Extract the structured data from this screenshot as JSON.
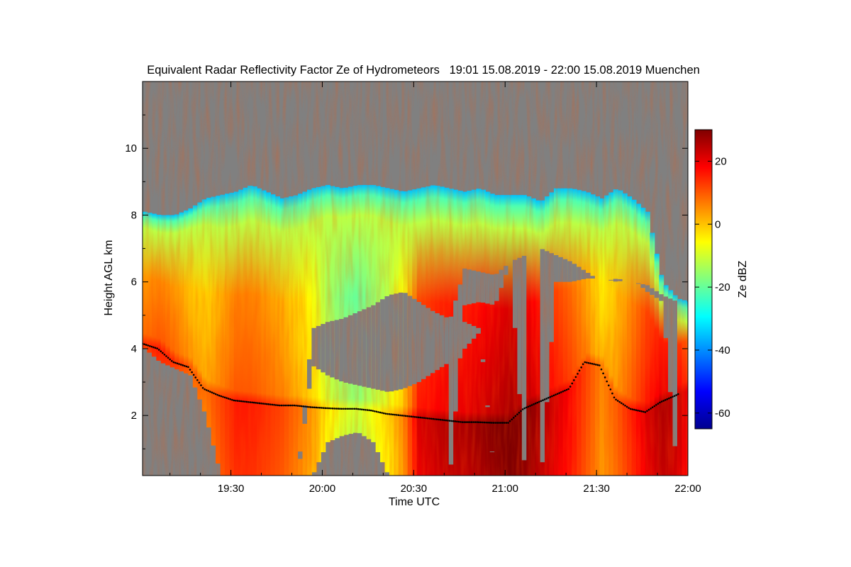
{
  "chart_data": {
    "type": "heatmap",
    "title": "Equivalent Radar Reflectivity Factor Ze of Hydrometeors   19:01 15.08.2019 - 22:00 15.08.2019 Muenchen",
    "xlabel": "Time UTC",
    "ylabel": "Height AGL km",
    "xlim": [
      "19:01",
      "22:00"
    ],
    "ylim": [
      0.2,
      12.0
    ],
    "x_ticks": [
      "19:30",
      "20:00",
      "20:30",
      "21:00",
      "21:30",
      "22:00"
    ],
    "x_tick_minutes": [
      29,
      59,
      89,
      119,
      149,
      179
    ],
    "y_ticks": [
      "2",
      "4",
      "6",
      "8",
      "10"
    ],
    "y_tick_values": [
      2,
      4,
      6,
      8,
      10
    ],
    "colorbar": {
      "label": "Ze dBZ",
      "range": [
        -65,
        30
      ],
      "ticks": [
        "-60",
        "-40",
        "-20",
        "0",
        "20"
      ],
      "tick_values": [
        -60,
        -40,
        -20,
        0,
        20
      ],
      "colors": [
        "#00008f",
        "#0000ff",
        "#0080ff",
        "#00ffff",
        "#80ff80",
        "#ffff00",
        "#ff8000",
        "#ff0000",
        "#800000"
      ]
    },
    "background_color": "#808080",
    "echo": {
      "minutes": [
        0,
        5,
        10,
        15,
        20,
        25,
        30,
        35,
        40,
        45,
        50,
        55,
        60,
        65,
        70,
        75,
        80,
        85,
        90,
        95,
        100,
        105,
        110,
        115,
        120,
        125,
        130,
        135,
        140,
        145,
        150,
        155,
        160,
        165,
        170,
        175,
        179
      ],
      "cloud_top_km": [
        8.1,
        8.0,
        8.0,
        8.2,
        8.5,
        8.6,
        8.7,
        8.9,
        8.7,
        8.5,
        8.6,
        8.8,
        8.9,
        8.8,
        8.9,
        8.9,
        8.8,
        8.7,
        8.8,
        8.9,
        8.8,
        8.7,
        8.8,
        8.6,
        8.6,
        8.6,
        8.4,
        8.8,
        8.8,
        8.7,
        8.5,
        8.8,
        8.5,
        8.1,
        6.0,
        5.5,
        5.4
      ],
      "gap_base_km": [
        6.5,
        6.5,
        6.3,
        6.2,
        6.3,
        6.0,
        5.8,
        5.3,
        4.8,
        4.6,
        3.5,
        3.4,
        3.2,
        3.4,
        3.6,
        3.8,
        4.0,
        4.2,
        4.3,
        4.3,
        4.8,
        6.4,
        6.3,
        6.2,
        6.6,
        6.8,
        7.0,
        6.8,
        6.6,
        6.3,
        6.0,
        6.1,
        6.0,
        5.9,
        5.6,
        5.4,
        5.3
      ],
      "gap_top_km": [
        0,
        0,
        0,
        0,
        0,
        0,
        0,
        0,
        0,
        0,
        0,
        0,
        0,
        0,
        0,
        0,
        0,
        0,
        0,
        0,
        0,
        5.3,
        5.4,
        5.3,
        6.6,
        0,
        0,
        6.0,
        6.0,
        6.1,
        6.1,
        6.0,
        6.1,
        5.7,
        5.4,
        0,
        0
      ],
      "gap2_base_km": [
        0,
        0,
        0,
        0,
        0,
        0,
        0,
        0,
        0,
        0,
        0,
        3.5,
        3.2,
        3.0,
        2.9,
        2.8,
        2.7,
        2.8,
        3.0,
        3.3,
        3.6,
        4.0,
        4.5,
        0,
        0,
        0,
        0,
        0,
        0,
        0,
        0,
        0,
        0,
        0,
        0,
        0,
        0
      ],
      "gap2_top_km": [
        0,
        0,
        0,
        0,
        0,
        0,
        0,
        0,
        0,
        0,
        0,
        4.6,
        4.8,
        4.9,
        5.1,
        5.3,
        5.6,
        5.7,
        5.4,
        5.1,
        4.9,
        4.8,
        4.6,
        0,
        0,
        0,
        0,
        0,
        0,
        0,
        0,
        0,
        0,
        0,
        0,
        0,
        0
      ],
      "low_base_km": [
        4.0,
        3.6,
        3.4,
        3.2,
        2.0,
        0.2,
        0.2,
        0.2,
        0.2,
        0.2,
        0.2,
        0.2,
        1.2,
        1.4,
        1.5,
        1.2,
        0.2,
        0.2,
        0.2,
        0.2,
        0.2,
        0.2,
        0.2,
        0.2,
        0.2,
        0.2,
        0.2,
        0.2,
        0.2,
        0.2,
        0.2,
        0.2,
        0.2,
        0.2,
        0.2,
        0.2,
        0.2
      ],
      "core_dbz": [
        10,
        12,
        10,
        6,
        4,
        8,
        12,
        12,
        10,
        8,
        4,
        0,
        -8,
        -12,
        -14,
        -10,
        -6,
        2,
        18,
        20,
        22,
        22,
        24,
        26,
        28,
        26,
        22,
        18,
        14,
        8,
        2,
        6,
        12,
        18,
        22,
        20,
        14
      ],
      "melting_layer_km": [
        4.15,
        4.0,
        3.6,
        3.45,
        2.8,
        2.6,
        2.45,
        2.4,
        2.35,
        2.3,
        2.3,
        2.25,
        2.22,
        2.2,
        2.2,
        2.15,
        2.05,
        2.0,
        1.95,
        1.9,
        1.85,
        1.8,
        1.8,
        1.78,
        1.78,
        2.2,
        2.4,
        2.6,
        2.8,
        3.6,
        3.5,
        2.5,
        2.2,
        2.1,
        2.4,
        2.6,
        2.8
      ]
    }
  }
}
